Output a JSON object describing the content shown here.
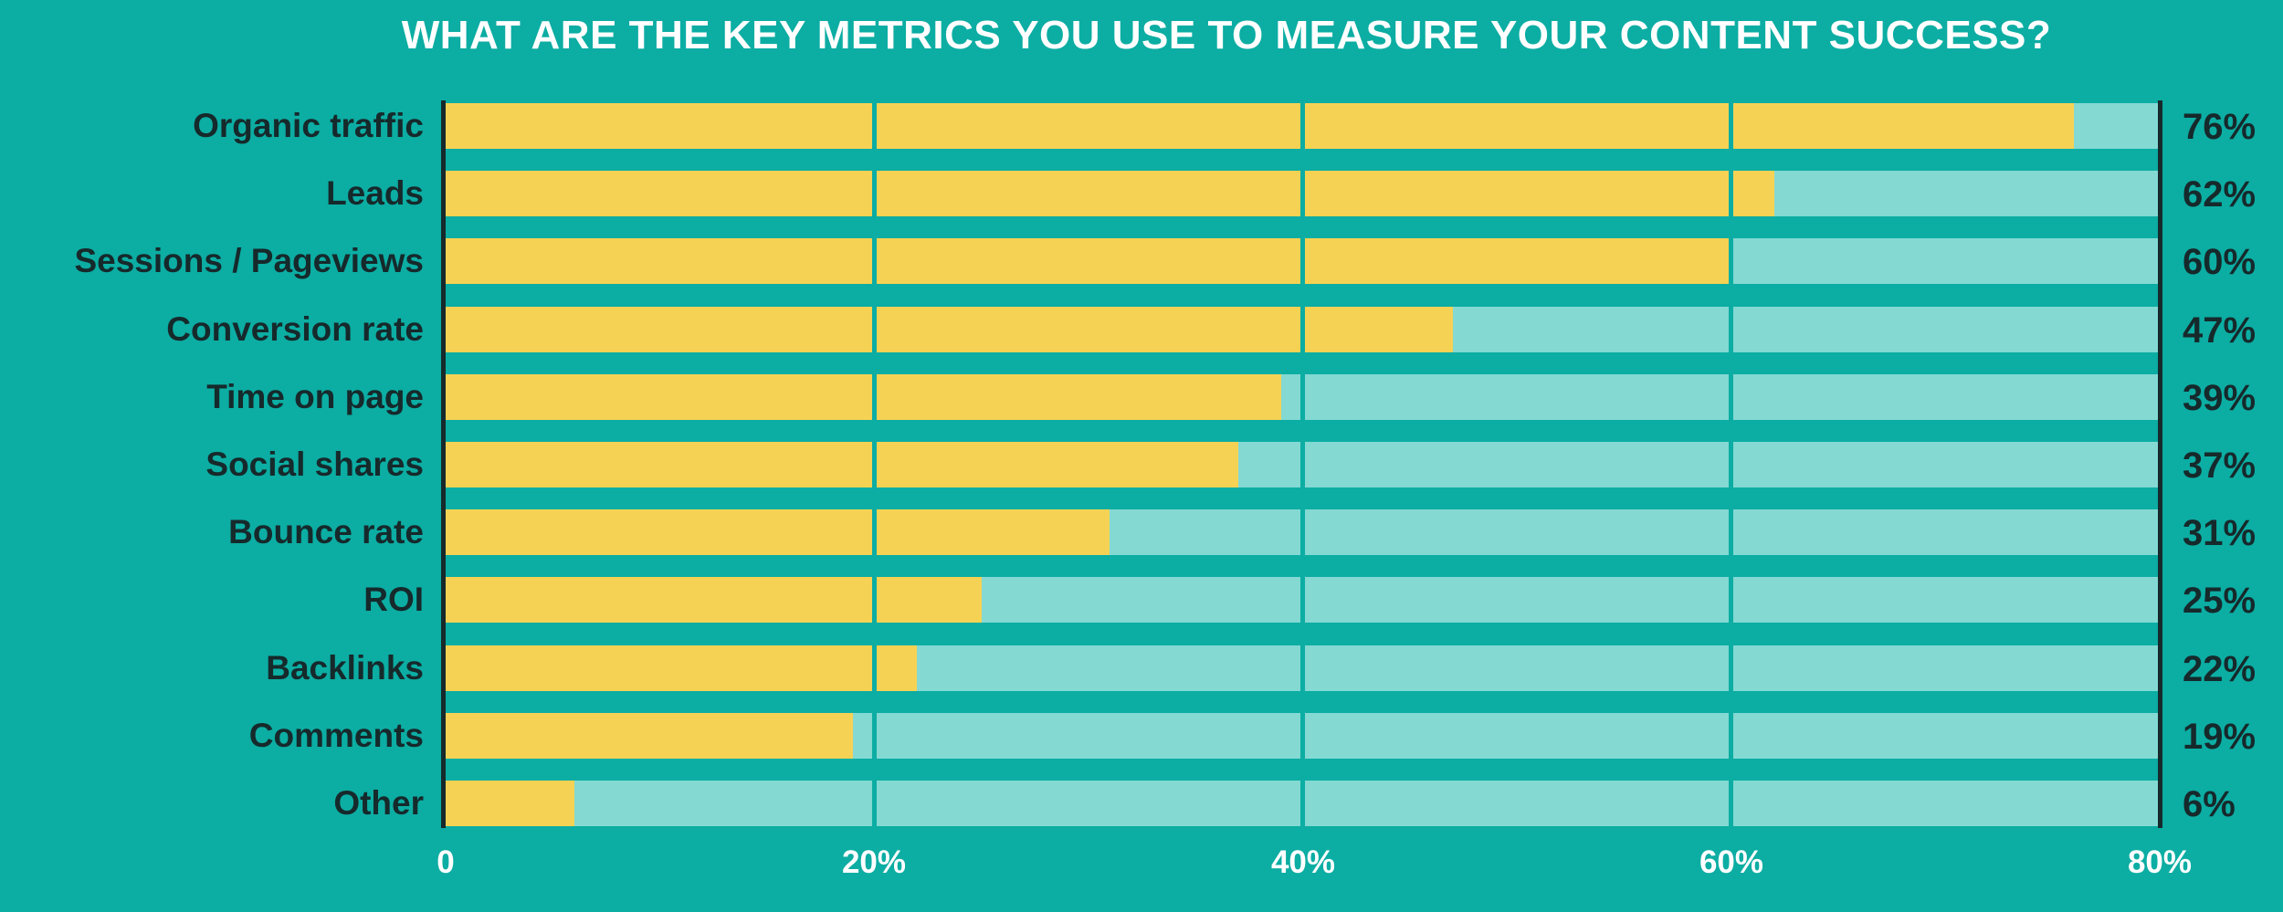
{
  "chart_data": {
    "type": "bar",
    "orientation": "horizontal",
    "title": "WHAT ARE THE KEY METRICS YOU USE TO MEASURE YOUR CONTENT SUCCESS?",
    "categories": [
      "Organic traffic",
      "Leads",
      "Sessions / Pageviews",
      "Conversion rate",
      "Time on page",
      "Social shares",
      "Bounce rate",
      "ROI",
      "Backlinks",
      "Comments",
      "Other"
    ],
    "values": [
      76,
      62,
      60,
      47,
      39,
      37,
      31,
      25,
      22,
      19,
      6
    ],
    "value_suffix": "%",
    "xlabel": "",
    "ylabel": "",
    "xlim": [
      0,
      80
    ],
    "x_ticks": [
      {
        "label": "0",
        "value": 0
      },
      {
        "label": "20%",
        "value": 20
      },
      {
        "label": "40%",
        "value": 40
      },
      {
        "label": "60%",
        "value": 60
      },
      {
        "label": "80%",
        "value": 80
      }
    ],
    "gridlines_at": [
      20,
      40,
      60
    ],
    "axis_lines_at": [
      0,
      80
    ],
    "legend": "none",
    "bar_style": "filled portion on full-length track",
    "colors": {
      "background": "#0cada3",
      "bar_fill": "#f6d254",
      "bar_track": "#84d9d3",
      "gridline": "#0cada3",
      "axis_line": "#16292b",
      "label_text": "#16292b",
      "value_text": "#16292b",
      "title_text": "#ffffff",
      "tick_text": "#ffffff"
    }
  }
}
